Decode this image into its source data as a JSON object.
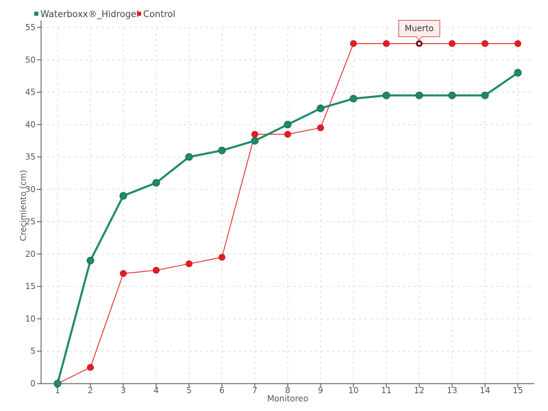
{
  "chart_data": {
    "type": "line",
    "xlabel": "Monitoreo",
    "ylabel": "Crecimiento (cm)",
    "categories": [
      "1",
      "2",
      "3",
      "4",
      "5",
      "6",
      "7",
      "8",
      "9",
      "10",
      "11",
      "12",
      "13",
      "14",
      "15"
    ],
    "ylim": [
      0,
      55
    ],
    "yticks": [
      "0",
      "5",
      "10",
      "15",
      "20",
      "25",
      "30",
      "35",
      "40",
      "45",
      "50",
      "55"
    ],
    "grid": true,
    "legend_position": "top-left",
    "series": [
      {
        "name": "Waterboxx®_Hidrogel",
        "color": "#1e8a6a",
        "values": [
          0,
          19,
          29,
          31,
          35,
          36,
          37.5,
          40,
          42.5,
          44,
          44.5,
          44.5,
          44.5,
          44.5,
          48
        ]
      },
      {
        "name": "Control",
        "color": "#e31e24",
        "values": [
          0,
          2.5,
          17,
          17.5,
          18.5,
          19.5,
          38.5,
          38.5,
          39.5,
          52.5,
          52.5,
          52.5,
          52.5,
          52.5,
          52.5
        ]
      }
    ],
    "annotations": [
      {
        "text": "Muerto",
        "series": "Control",
        "category": "12"
      }
    ]
  }
}
